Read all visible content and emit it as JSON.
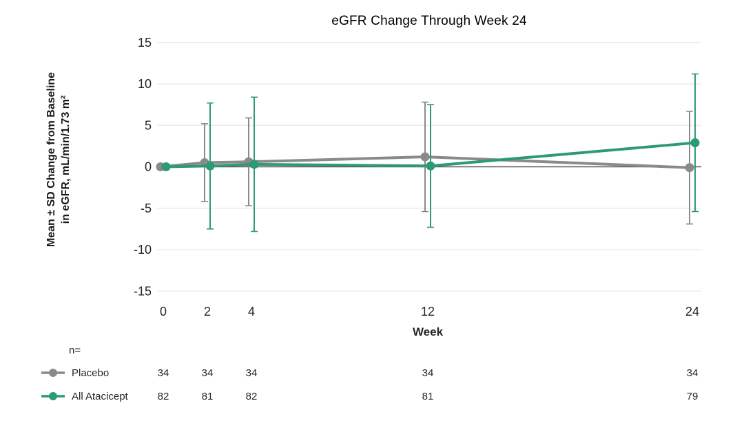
{
  "title": "eGFR Change Through Week 24",
  "colors": {
    "title_text": "#1F3864",
    "axis_text": "#262626",
    "gridline": "#E8E8E8",
    "zero_axis_line": "#595959",
    "placebo": "#8A8A8A",
    "atacicept": "#2D9B72",
    "background": "#FFFFFF"
  },
  "chart_data": {
    "type": "line",
    "title": "eGFR Change Through Week 24",
    "xlabel": "Week",
    "ylabel_line1": "Mean ± SD Change from Baseline",
    "ylabel_line2": "in eGFR, mL/min/1.73 m²",
    "x": [
      0,
      2,
      4,
      12,
      24
    ],
    "xlim": [
      0,
      24
    ],
    "ylim": [
      -15,
      15
    ],
    "ytick_step": 5,
    "yticks": [
      15,
      10,
      5,
      0,
      -5,
      -10,
      -15
    ],
    "grid": true,
    "error_bars": "mean ± SD",
    "legend_position": "bottom-left",
    "n_label": "n=",
    "series": [
      {
        "name": "Placebo",
        "color": "#8A8A8A",
        "means": [
          0,
          0.5,
          0.6,
          1.2,
          -0.1
        ],
        "sd": [
          0,
          4.7,
          5.3,
          6.6,
          6.8
        ],
        "n": [
          34,
          34,
          34,
          34,
          34
        ]
      },
      {
        "name": "All Atacicept",
        "color": "#2D9B72",
        "means": [
          0,
          0.1,
          0.3,
          0.1,
          2.9
        ],
        "sd": [
          0,
          7.6,
          8.1,
          7.4,
          8.3
        ],
        "n": [
          82,
          81,
          82,
          81,
          79
        ]
      }
    ]
  }
}
